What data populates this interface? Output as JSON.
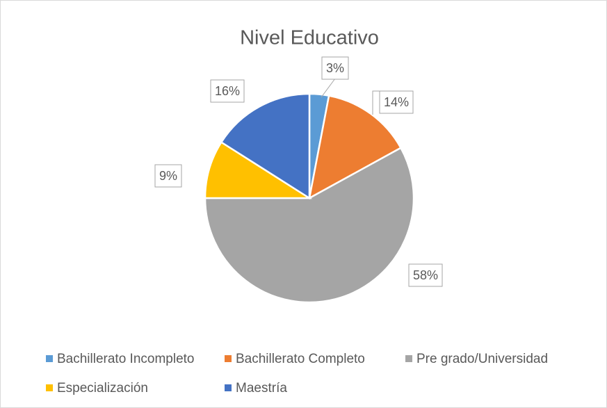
{
  "chart_data": {
    "type": "pie",
    "title": "Nivel Educativo",
    "categories": [
      "Bachillerato Incompleto",
      "Bachillerato Completo",
      "Pre grado/Universidad",
      "Especialización",
      "Maestría"
    ],
    "values": [
      3,
      14,
      58,
      9,
      16
    ],
    "value_labels": [
      "3%",
      "14%",
      "58%",
      "9%",
      "16%"
    ],
    "colors": [
      "#5b9bd5",
      "#ed7d31",
      "#a5a5a5",
      "#ffc000",
      "#4472c4"
    ],
    "legend": "bottom"
  }
}
